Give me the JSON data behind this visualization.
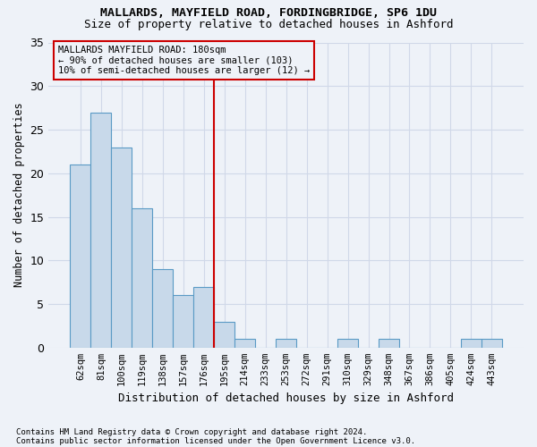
{
  "title1": "MALLARDS, MAYFIELD ROAD, FORDINGBRIDGE, SP6 1DU",
  "title2": "Size of property relative to detached houses in Ashford",
  "xlabel": "Distribution of detached houses by size in Ashford",
  "ylabel": "Number of detached properties",
  "footnote1": "Contains HM Land Registry data © Crown copyright and database right 2024.",
  "footnote2": "Contains public sector information licensed under the Open Government Licence v3.0.",
  "categories": [
    "62sqm",
    "81sqm",
    "100sqm",
    "119sqm",
    "138sqm",
    "157sqm",
    "176sqm",
    "195sqm",
    "214sqm",
    "233sqm",
    "253sqm",
    "272sqm",
    "291sqm",
    "310sqm",
    "329sqm",
    "348sqm",
    "367sqm",
    "386sqm",
    "405sqm",
    "424sqm",
    "443sqm"
  ],
  "values": [
    21,
    27,
    23,
    16,
    9,
    6,
    7,
    3,
    1,
    0,
    1,
    0,
    0,
    1,
    0,
    1,
    0,
    0,
    0,
    1,
    1
  ],
  "bar_color": "#c8d9ea",
  "bar_edge_color": "#5a9ac5",
  "grid_color": "#d0d8e8",
  "background_color": "#eef2f8",
  "annotation_line1": "MALLARDS MAYFIELD ROAD: 180sqm",
  "annotation_line2": "← 90% of detached houses are smaller (103)",
  "annotation_line3": "10% of semi-detached houses are larger (12) →",
  "vline_color": "#cc0000",
  "box_color": "#cc0000",
  "ylim": [
    0,
    35
  ],
  "yticks": [
    0,
    5,
    10,
    15,
    20,
    25,
    30,
    35
  ]
}
